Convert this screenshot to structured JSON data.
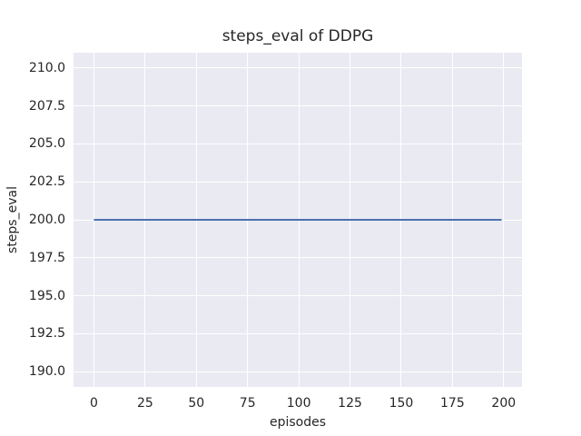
{
  "chart_data": {
    "type": "line",
    "title": "steps_eval of DDPG",
    "xlabel": "episodes",
    "ylabel": "steps_eval",
    "xlim": [
      -9.95,
      208.95
    ],
    "ylim": [
      189,
      211
    ],
    "xtick_labels": [
      "0",
      "25",
      "50",
      "75",
      "100",
      "125",
      "150",
      "175",
      "200"
    ],
    "ytick_labels": [
      "190.0",
      "192.5",
      "195.0",
      "197.5",
      "200.0",
      "202.5",
      "205.0",
      "207.5",
      "210.0"
    ],
    "grid": true,
    "legend": false,
    "style": "seaborn-darkgrid",
    "colors": {
      "figure_background": "#FFFFFF",
      "axes_background": "#EAEAF2",
      "gridline": "#FFFFFF",
      "text": "#262626",
      "line": "#4C72B0"
    },
    "series": [
      {
        "name": "DDPG",
        "color": "#4C72B0",
        "linewidth": 2,
        "x": [
          0,
          199
        ],
        "y": [
          200,
          200
        ]
      }
    ]
  }
}
